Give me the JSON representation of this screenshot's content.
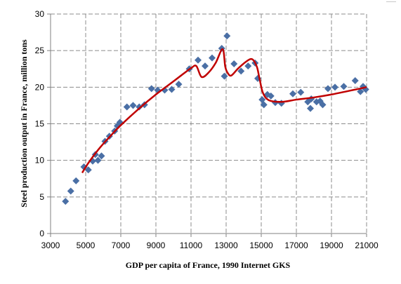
{
  "chart_data": {
    "type": "scatter",
    "title": "",
    "xlabel": "GDP per capita of France, 1990 Internet GKS",
    "ylabel": "Steel production output in France, million tons",
    "xlim": [
      3000,
      21000
    ],
    "ylim": [
      0,
      30
    ],
    "x_ticks": [
      "3000",
      "5000",
      "7000",
      "9000",
      "11000",
      "13000",
      "15000",
      "17000",
      "19000",
      "21000"
    ],
    "y_ticks": [
      "0",
      "5",
      "10",
      "15",
      "20",
      "25",
      "30"
    ],
    "grid": true,
    "legend": "none",
    "colors": {
      "points": "#4a6fa5",
      "trend": "#c00000",
      "grid": "#8c8c8c",
      "axis": "#808080"
    },
    "series": [
      {
        "type": "scatter",
        "marker": "diamond",
        "points": [
          [
            3850,
            4.4
          ],
          [
            4150,
            5.8
          ],
          [
            4450,
            7.2
          ],
          [
            4900,
            9.1
          ],
          [
            5150,
            8.7
          ],
          [
            5400,
            9.9
          ],
          [
            5550,
            10.8
          ],
          [
            5700,
            10.0
          ],
          [
            5900,
            10.6
          ],
          [
            6100,
            12.6
          ],
          [
            6350,
            13.3
          ],
          [
            6650,
            14.0
          ],
          [
            6800,
            14.7
          ],
          [
            6950,
            15.2
          ],
          [
            7350,
            17.3
          ],
          [
            7700,
            17.5
          ],
          [
            8050,
            17.3
          ],
          [
            8350,
            17.6
          ],
          [
            8750,
            19.8
          ],
          [
            9100,
            19.6
          ],
          [
            9500,
            19.6
          ],
          [
            9900,
            19.7
          ],
          [
            10300,
            20.4
          ],
          [
            10900,
            22.5
          ],
          [
            11400,
            23.7
          ],
          [
            11800,
            22.9
          ],
          [
            12200,
            24.0
          ],
          [
            12750,
            25.3
          ],
          [
            12900,
            21.5
          ],
          [
            13050,
            27.0
          ],
          [
            13450,
            23.2
          ],
          [
            13850,
            22.2
          ],
          [
            14250,
            22.9
          ],
          [
            14650,
            23.3
          ],
          [
            14800,
            21.2
          ],
          [
            15050,
            18.3
          ],
          [
            15150,
            17.6
          ],
          [
            15350,
            19.0
          ],
          [
            15550,
            18.8
          ],
          [
            15800,
            17.9
          ],
          [
            16150,
            17.8
          ],
          [
            16800,
            19.1
          ],
          [
            17250,
            19.3
          ],
          [
            17650,
            18.0
          ],
          [
            17800,
            17.1
          ],
          [
            17850,
            18.4
          ],
          [
            18150,
            18.0
          ],
          [
            18350,
            18.1
          ],
          [
            18500,
            17.6
          ],
          [
            18800,
            19.8
          ],
          [
            19200,
            20.0
          ],
          [
            19700,
            20.1
          ],
          [
            20350,
            20.9
          ],
          [
            20650,
            19.4
          ],
          [
            20800,
            20.1
          ],
          [
            20950,
            19.7
          ]
        ]
      },
      {
        "type": "line",
        "smooth": true,
        "points": [
          [
            4800,
            8.3
          ],
          [
            5200,
            9.8
          ],
          [
            5800,
            11.7
          ],
          [
            6400,
            13.3
          ],
          [
            7000,
            14.8
          ],
          [
            8000,
            17.0
          ],
          [
            9000,
            19.0
          ],
          [
            10000,
            20.8
          ],
          [
            10600,
            21.9
          ],
          [
            11000,
            22.6
          ],
          [
            11300,
            22.9
          ],
          [
            11600,
            21.4
          ],
          [
            12000,
            22.0
          ],
          [
            12400,
            23.3
          ],
          [
            12800,
            25.2
          ],
          [
            12950,
            22.8
          ],
          [
            13100,
            21.9
          ],
          [
            13300,
            21.6
          ],
          [
            13700,
            22.6
          ],
          [
            14200,
            23.6
          ],
          [
            14500,
            23.8
          ],
          [
            14750,
            22.8
          ],
          [
            14900,
            21.2
          ],
          [
            15100,
            19.2
          ],
          [
            15450,
            18.2
          ],
          [
            16200,
            18.0
          ],
          [
            17000,
            18.3
          ],
          [
            18000,
            18.6
          ],
          [
            19000,
            19.0
          ],
          [
            20000,
            19.5
          ],
          [
            21000,
            20.0
          ]
        ]
      }
    ]
  }
}
